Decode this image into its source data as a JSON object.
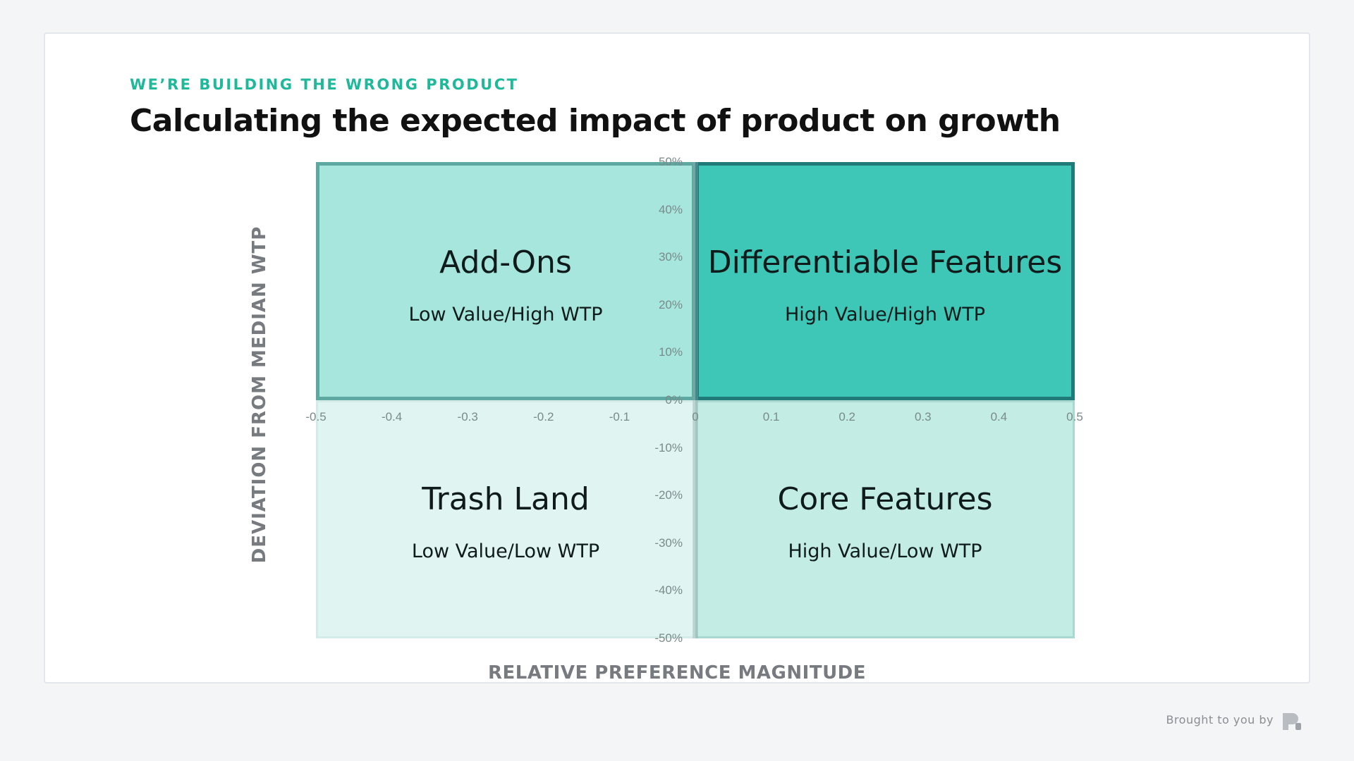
{
  "header": {
    "eyebrow": "WE’RE BUILDING THE WRONG PRODUCT",
    "title": "Calculating the expected impact of product on growth"
  },
  "footer": {
    "brought_by": "Brought to you by",
    "logo_icon": "p-logo-icon"
  },
  "colors": {
    "accent": "#1fb89a",
    "addons_fill": "#a6e6dc",
    "differentiable_fill": "#3ec6b6",
    "trash_fill": "#e0f5f1",
    "core_fill": "#c2ece4"
  },
  "chart_data": {
    "type": "quadrant",
    "title": "",
    "xlabel": "RELATIVE PREFERENCE MAGNITUDE",
    "ylabel": "DEVIATION FROM MEDIAN WTP",
    "xlim": [
      -0.5,
      0.5
    ],
    "ylim": [
      -0.5,
      0.5
    ],
    "x_ticks": [
      "-0.5",
      "-0.4",
      "-0.3",
      "-0.2",
      "-0.1",
      "0",
      "0.1",
      "0.2",
      "0.3",
      "0.4",
      "0.5"
    ],
    "y_ticks": [
      "50%",
      "40%",
      "30%",
      "20%",
      "10%",
      "0%",
      "-10%",
      "-20%",
      "-30%",
      "-40%",
      "-50%"
    ],
    "quadrants": [
      {
        "name": "Add-Ons",
        "subtitle": "Low Value/High WTP"
      },
      {
        "name": "Differentiable Features",
        "subtitle": "High Value/High WTP"
      },
      {
        "name": "Trash Land",
        "subtitle": "Low Value/Low WTP"
      },
      {
        "name": "Core Features",
        "subtitle": "High Value/Low WTP"
      }
    ]
  }
}
